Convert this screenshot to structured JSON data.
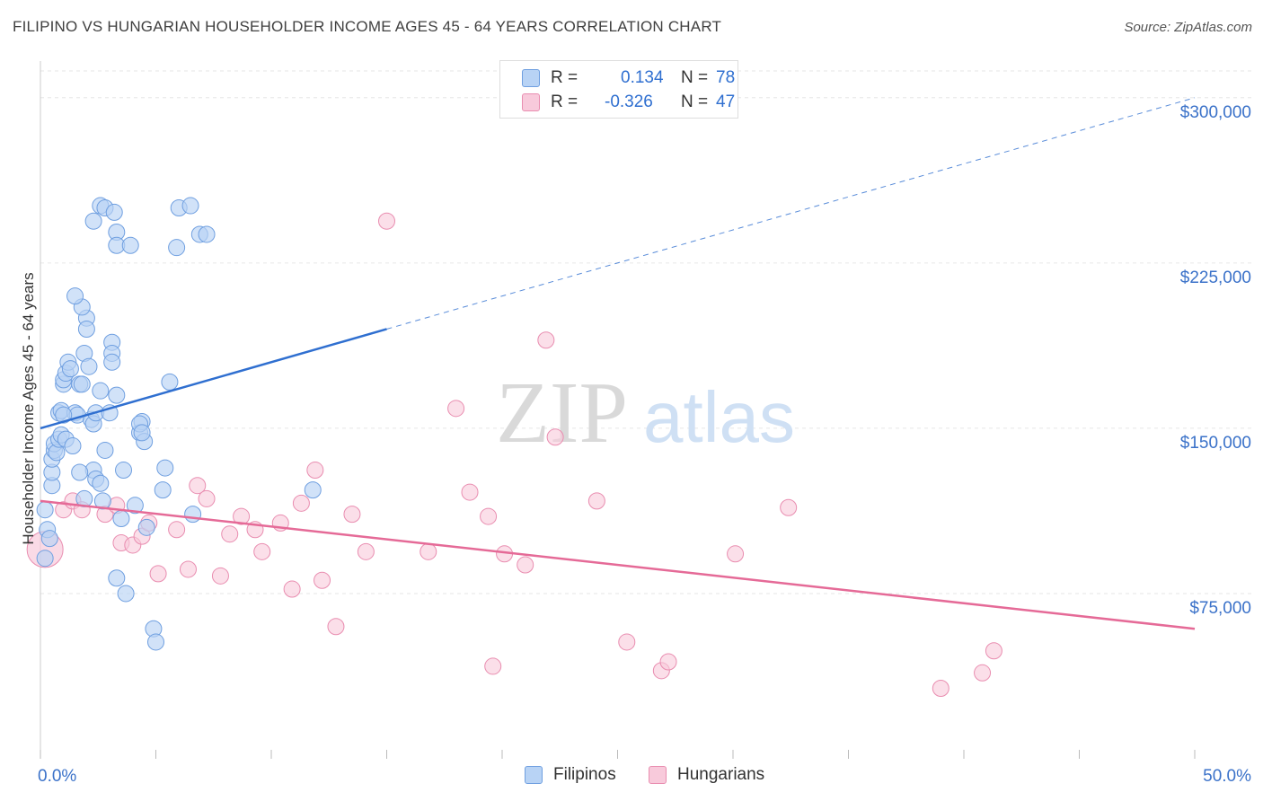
{
  "title": "FILIPINO VS HUNGARIAN HOUSEHOLDER INCOME AGES 45 - 64 YEARS CORRELATION CHART",
  "source": "Source: ZipAtlas.com",
  "watermark": {
    "zip": "ZIP",
    "atlas": "atlas"
  },
  "legend": {
    "filipinos": {
      "r_label": "R =",
      "r_value": "0.134",
      "n_label": "N =",
      "n_value": "78"
    },
    "hungarians": {
      "r_label": "R =",
      "r_value": "-0.326",
      "n_label": "N =",
      "n_value": "47"
    }
  },
  "colors": {
    "blue_fill": "#b8d3f5",
    "blue_stroke": "#6f9fe0",
    "blue_line": "#2f6fd0",
    "pink_fill": "#f8cadb",
    "pink_stroke": "#e98db0",
    "pink_line": "#e56a97",
    "grid": "#e6e6e6",
    "tick_label": "#3b72c9"
  },
  "chart_data": {
    "type": "scatter",
    "title": "FILIPINO VS HUNGARIAN HOUSEHOLDER INCOME AGES 45 - 64 YEARS CORRELATION CHART",
    "xlabel": "",
    "ylabel": "Householder Income Ages 45 - 64 years",
    "xlim": [
      0,
      50
    ],
    "ylim": [
      0,
      315000
    ],
    "x_tick_labels": [
      "0.0%",
      "50.0%"
    ],
    "y_ticks": [
      75000,
      150000,
      225000,
      300000
    ],
    "y_tick_labels": [
      "$75,000",
      "$150,000",
      "$225,000",
      "$300,000"
    ],
    "series": [
      {
        "name": "Filipinos",
        "color": "blue",
        "trend": {
          "x0": 0,
          "y0": 150000,
          "x1": 15,
          "y1": 195000,
          "dash_to_x": 50,
          "dash_to_y": 300000
        },
        "points": [
          [
            0.2,
            113000
          ],
          [
            0.3,
            104000
          ],
          [
            0.4,
            100000
          ],
          [
            0.2,
            91000
          ],
          [
            0.5,
            124000
          ],
          [
            0.5,
            130000
          ],
          [
            0.5,
            136000
          ],
          [
            0.6,
            140000
          ],
          [
            0.6,
            143000
          ],
          [
            0.7,
            139000
          ],
          [
            0.8,
            145000
          ],
          [
            0.9,
            147000
          ],
          [
            0.8,
            157000
          ],
          [
            0.9,
            158000
          ],
          [
            1.0,
            170000
          ],
          [
            1.0,
            172000
          ],
          [
            1.1,
            175000
          ],
          [
            1.2,
            180000
          ],
          [
            1.3,
            177000
          ],
          [
            1.1,
            145000
          ],
          [
            1.4,
            142000
          ],
          [
            1.5,
            157000
          ],
          [
            1.6,
            156000
          ],
          [
            1.7,
            170000
          ],
          [
            1.8,
            170000
          ],
          [
            1.9,
            184000
          ],
          [
            2.0,
            200000
          ],
          [
            2.0,
            195000
          ],
          [
            1.8,
            205000
          ],
          [
            2.1,
            178000
          ],
          [
            2.2,
            154000
          ],
          [
            2.3,
            152000
          ],
          [
            2.4,
            157000
          ],
          [
            1.9,
            118000
          ],
          [
            2.3,
            131000
          ],
          [
            2.4,
            127000
          ],
          [
            2.6,
            125000
          ],
          [
            2.7,
            117000
          ],
          [
            2.8,
            140000
          ],
          [
            1.5,
            210000
          ],
          [
            3.0,
            157000
          ],
          [
            3.1,
            189000
          ],
          [
            3.1,
            184000
          ],
          [
            3.1,
            180000
          ],
          [
            3.3,
            165000
          ],
          [
            2.6,
            251000
          ],
          [
            2.8,
            250000
          ],
          [
            3.2,
            248000
          ],
          [
            2.3,
            244000
          ],
          [
            3.3,
            239000
          ],
          [
            3.3,
            233000
          ],
          [
            3.9,
            233000
          ],
          [
            3.6,
            131000
          ],
          [
            3.5,
            109000
          ],
          [
            3.3,
            82000
          ],
          [
            3.7,
            75000
          ],
          [
            4.3,
            148000
          ],
          [
            4.4,
            153000
          ],
          [
            4.5,
            144000
          ],
          [
            4.3,
            152000
          ],
          [
            4.1,
            115000
          ],
          [
            4.6,
            105000
          ],
          [
            4.9,
            59000
          ],
          [
            5.0,
            53000
          ],
          [
            5.3,
            122000
          ],
          [
            5.4,
            132000
          ],
          [
            5.6,
            171000
          ],
          [
            5.9,
            232000
          ],
          [
            6.0,
            250000
          ],
          [
            6.5,
            251000
          ],
          [
            6.9,
            238000
          ],
          [
            7.2,
            238000
          ],
          [
            6.6,
            111000
          ],
          [
            11.8,
            122000
          ],
          [
            4.4,
            148000
          ],
          [
            1.0,
            156000
          ],
          [
            1.7,
            130000
          ],
          [
            2.6,
            167000
          ]
        ]
      },
      {
        "name": "Hungarians",
        "color": "pink",
        "trend": {
          "x0": 0,
          "y0": 117000,
          "x1": 50,
          "y1": 59000
        },
        "points": [
          [
            0.2,
            95000
          ],
          [
            1.0,
            113000
          ],
          [
            1.4,
            117000
          ],
          [
            1.8,
            113000
          ],
          [
            2.8,
            111000
          ],
          [
            3.3,
            115000
          ],
          [
            3.5,
            98000
          ],
          [
            4.0,
            97000
          ],
          [
            4.4,
            101000
          ],
          [
            4.7,
            107000
          ],
          [
            5.1,
            84000
          ],
          [
            5.9,
            104000
          ],
          [
            6.4,
            86000
          ],
          [
            6.8,
            124000
          ],
          [
            7.2,
            118000
          ],
          [
            7.8,
            83000
          ],
          [
            8.2,
            102000
          ],
          [
            8.7,
            110000
          ],
          [
            9.3,
            104000
          ],
          [
            9.6,
            94000
          ],
          [
            10.4,
            107000
          ],
          [
            10.9,
            77000
          ],
          [
            11.3,
            116000
          ],
          [
            11.9,
            131000
          ],
          [
            12.2,
            81000
          ],
          [
            12.8,
            60000
          ],
          [
            13.5,
            111000
          ],
          [
            14.1,
            94000
          ],
          [
            15.0,
            244000
          ],
          [
            16.8,
            94000
          ],
          [
            18.0,
            159000
          ],
          [
            18.6,
            121000
          ],
          [
            19.4,
            110000
          ],
          [
            19.6,
            42000
          ],
          [
            20.1,
            93000
          ],
          [
            21.0,
            88000
          ],
          [
            21.9,
            190000
          ],
          [
            22.3,
            146000
          ],
          [
            24.1,
            117000
          ],
          [
            25.4,
            53000
          ],
          [
            26.9,
            40000
          ],
          [
            27.2,
            44000
          ],
          [
            30.1,
            93000
          ],
          [
            32.4,
            114000
          ],
          [
            39.0,
            32000
          ],
          [
            40.8,
            39000
          ],
          [
            41.3,
            49000
          ]
        ]
      }
    ]
  }
}
